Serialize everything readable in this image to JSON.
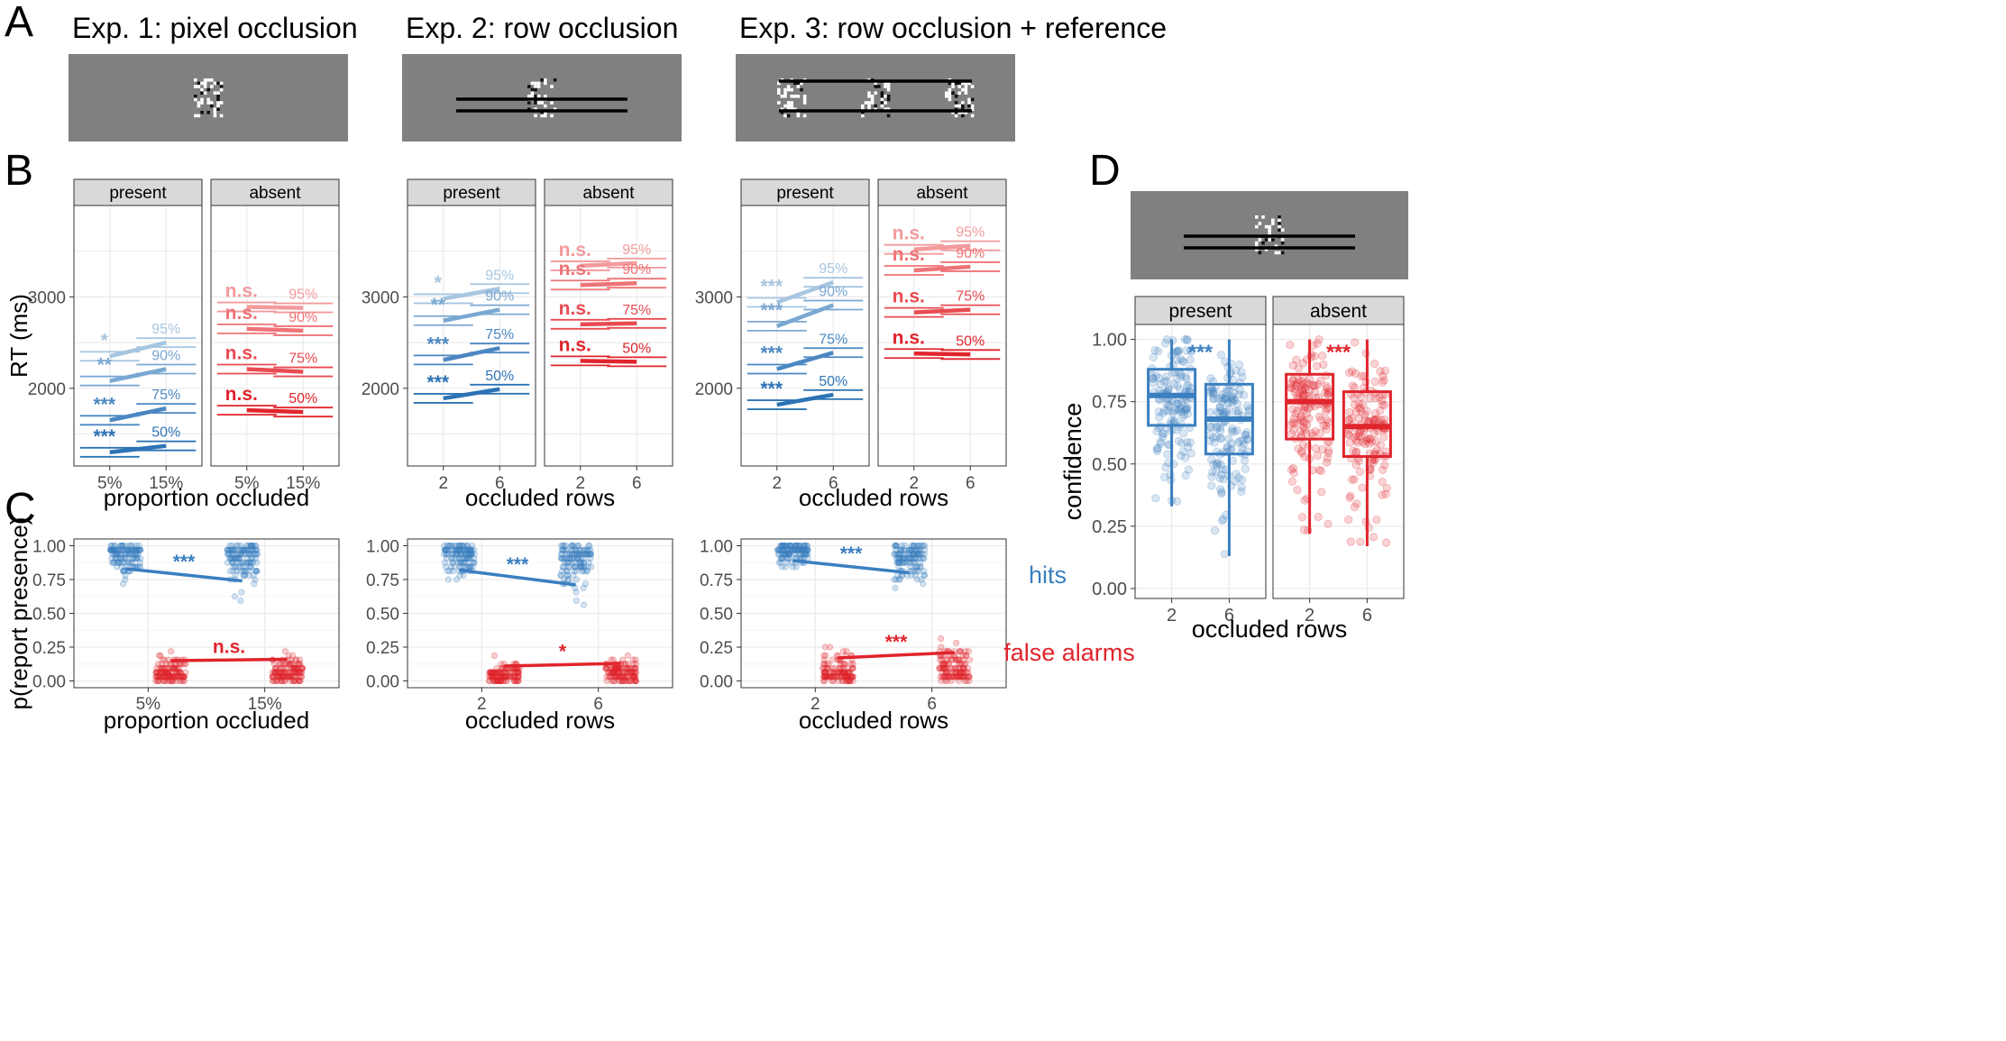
{
  "panel_letters": [
    "A",
    "B",
    "C",
    "D"
  ],
  "experiments": [
    {
      "title": "Exp. 1: pixel occlusion",
      "stim": "pixel"
    },
    {
      "title": "Exp. 2: row occlusion",
      "stim": "rows"
    },
    {
      "title": "Exp. 3: row occlusion + reference",
      "stim": "reference"
    }
  ],
  "colors": {
    "present": "#3a7fc0",
    "absent": "#e0242c",
    "stimulus_bg": "#808080",
    "strip": "#d9d9d9",
    "grid": "#ebebeb"
  },
  "facets": [
    "present",
    "absent"
  ],
  "legend": {
    "hits": "hits",
    "false_alarms": "false alarms"
  },
  "chart_data": [
    {
      "panel": "B",
      "experiment": 1,
      "type": "line",
      "ylabel": "RT (ms)",
      "xlabel": "proportion occluded",
      "x": [
        "5%",
        "15%"
      ],
      "ylim": [
        1150,
        4000
      ],
      "yticks": [
        2000,
        3000
      ],
      "facets": [
        {
          "name": "present",
          "series": [
            {
              "quantile": "95%",
              "values": [
                2350,
                2500
              ],
              "sig": "*"
            },
            {
              "quantile": "90%",
              "values": [
                2080,
                2210
              ],
              "sig": "**"
            },
            {
              "quantile": "75%",
              "values": [
                1650,
                1780
              ],
              "sig": "***"
            },
            {
              "quantile": "50%",
              "values": [
                1300,
                1370
              ],
              "sig": "***"
            }
          ]
        },
        {
          "name": "absent",
          "series": [
            {
              "quantile": "95%",
              "values": [
                2890,
                2880
              ],
              "sig": "n.s."
            },
            {
              "quantile": "90%",
              "values": [
                2650,
                2630
              ],
              "sig": "n.s."
            },
            {
              "quantile": "75%",
              "values": [
                2210,
                2180
              ],
              "sig": "n.s."
            },
            {
              "quantile": "50%",
              "values": [
                1760,
                1740
              ],
              "sig": "n.s."
            }
          ]
        }
      ]
    },
    {
      "panel": "B",
      "experiment": 2,
      "type": "line",
      "ylabel": "",
      "xlabel": "occluded rows",
      "x": [
        "2",
        "6"
      ],
      "ylim": [
        1150,
        4000
      ],
      "yticks": [
        2000,
        3000
      ],
      "facets": [
        {
          "name": "present",
          "series": [
            {
              "quantile": "95%",
              "values": [
                2980,
                3090
              ],
              "sig": "*"
            },
            {
              "quantile": "90%",
              "values": [
                2740,
                2860
              ],
              "sig": "**"
            },
            {
              "quantile": "75%",
              "values": [
                2310,
                2440
              ],
              "sig": "***"
            },
            {
              "quantile": "50%",
              "values": [
                1890,
                1990
              ],
              "sig": "***"
            }
          ]
        },
        {
          "name": "absent",
          "series": [
            {
              "quantile": "95%",
              "values": [
                3340,
                3370
              ],
              "sig": "n.s."
            },
            {
              "quantile": "90%",
              "values": [
                3130,
                3150
              ],
              "sig": "n.s."
            },
            {
              "quantile": "75%",
              "values": [
                2700,
                2710
              ],
              "sig": "n.s."
            },
            {
              "quantile": "50%",
              "values": [
                2300,
                2290
              ],
              "sig": "n.s."
            }
          ]
        }
      ]
    },
    {
      "panel": "B",
      "experiment": 3,
      "type": "line",
      "ylabel": "",
      "xlabel": "occluded rows",
      "x": [
        "2",
        "6"
      ],
      "ylim": [
        1150,
        4000
      ],
      "yticks": [
        2000,
        3000
      ],
      "facets": [
        {
          "name": "present",
          "series": [
            {
              "quantile": "95%",
              "values": [
                2940,
                3160
              ],
              "sig": "***"
            },
            {
              "quantile": "90%",
              "values": [
                2680,
                2910
              ],
              "sig": "***"
            },
            {
              "quantile": "75%",
              "values": [
                2210,
                2390
              ],
              "sig": "***"
            },
            {
              "quantile": "50%",
              "values": [
                1820,
                1930
              ],
              "sig": "***"
            }
          ]
        },
        {
          "name": "absent",
          "series": [
            {
              "quantile": "95%",
              "values": [
                3520,
                3560
              ],
              "sig": "n.s."
            },
            {
              "quantile": "90%",
              "values": [
                3290,
                3330
              ],
              "sig": "n.s."
            },
            {
              "quantile": "75%",
              "values": [
                2830,
                2860
              ],
              "sig": "n.s."
            },
            {
              "quantile": "50%",
              "values": [
                2380,
                2370
              ],
              "sig": "n.s."
            }
          ]
        }
      ]
    },
    {
      "panel": "C",
      "experiment": 1,
      "type": "scatter",
      "ylabel": "p(report presence)",
      "xlabel": "proportion occluded",
      "x": [
        "5%",
        "15%"
      ],
      "ylim": [
        -0.05,
        1.05
      ],
      "yticks": [
        0.0,
        0.25,
        0.5,
        0.75,
        1.0
      ],
      "series": [
        {
          "name": "hits",
          "means": [
            0.83,
            0.74
          ],
          "sig": "***"
        },
        {
          "name": "false alarms",
          "means": [
            0.15,
            0.16
          ],
          "sig": "n.s."
        }
      ]
    },
    {
      "panel": "C",
      "experiment": 2,
      "type": "scatter",
      "ylabel": "",
      "xlabel": "occluded rows",
      "x": [
        "2",
        "6"
      ],
      "ylim": [
        -0.05,
        1.05
      ],
      "yticks": [
        0.0,
        0.25,
        0.5,
        0.75,
        1.0
      ],
      "series": [
        {
          "name": "hits",
          "means": [
            0.82,
            0.71
          ],
          "sig": "***"
        },
        {
          "name": "false alarms",
          "means": [
            0.11,
            0.13
          ],
          "sig": "*"
        }
      ]
    },
    {
      "panel": "C",
      "experiment": 3,
      "type": "scatter",
      "ylabel": "",
      "xlabel": "occluded rows",
      "x": [
        "2",
        "6"
      ],
      "ylim": [
        -0.05,
        1.05
      ],
      "yticks": [
        0.0,
        0.25,
        0.5,
        0.75,
        1.0
      ],
      "series": [
        {
          "name": "hits",
          "means": [
            0.89,
            0.8
          ],
          "sig": "***"
        },
        {
          "name": "false alarms",
          "means": [
            0.17,
            0.21
          ],
          "sig": "***"
        }
      ]
    },
    {
      "panel": "D",
      "type": "box",
      "ylabel": "confidence",
      "xlabel": "occluded rows",
      "x": [
        "2",
        "6"
      ],
      "ylim": [
        -0.04,
        1.06
      ],
      "yticks": [
        0.0,
        0.25,
        0.5,
        0.75,
        1.0
      ],
      "facets": [
        {
          "name": "present",
          "sig": "***",
          "boxes": [
            {
              "x": "2",
              "q1": 0.655,
              "median": 0.775,
              "q3": 0.88,
              "lo": 0.33,
              "hi": 1.0
            },
            {
              "x": "6",
              "q1": 0.54,
              "median": 0.68,
              "q3": 0.82,
              "lo": 0.13,
              "hi": 1.0
            }
          ]
        },
        {
          "name": "absent",
          "sig": "***",
          "boxes": [
            {
              "x": "2",
              "q1": 0.6,
              "median": 0.75,
              "q3": 0.86,
              "lo": 0.22,
              "hi": 1.0
            },
            {
              "x": "6",
              "q1": 0.53,
              "median": 0.65,
              "q3": 0.79,
              "lo": 0.17,
              "hi": 1.0
            }
          ]
        }
      ]
    }
  ]
}
